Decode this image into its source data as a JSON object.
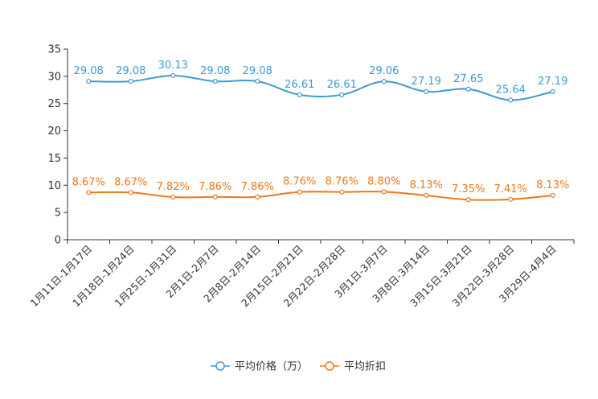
{
  "chart_data": {
    "type": "line",
    "categories": [
      "1月11日-1月17日",
      "1月18日-1月24日",
      "1月25日-1月31日",
      "2月1日-2月7日",
      "2月8日-2月14日",
      "2月15日-2月21日",
      "2月22日-2月28日",
      "3月1日-3月7日",
      "3月8日-3月14日",
      "3月15日-3月21日",
      "3月22日-3月28日",
      "3月29日-4月4日"
    ],
    "ylim": [
      0,
      35
    ],
    "yticks": [
      0,
      5,
      10,
      15,
      20,
      25,
      30,
      35
    ],
    "series": [
      {
        "name": "平均价格（万）",
        "color": "#3a9bd5",
        "values": [
          29.08,
          29.08,
          30.13,
          29.08,
          29.08,
          26.61,
          26.61,
          29.06,
          27.19,
          27.65,
          25.64,
          27.19
        ],
        "labels": [
          "29.08",
          "29.08",
          "30.13",
          "29.08",
          "29.08",
          "26.61",
          "26.61",
          "29.06",
          "27.19",
          "27.65",
          "25.64",
          "27.19"
        ]
      },
      {
        "name": "平均折扣",
        "color": "#f07818",
        "values": [
          8.67,
          8.67,
          7.82,
          7.86,
          7.86,
          8.76,
          8.76,
          8.8,
          8.13,
          7.35,
          7.41,
          8.13
        ],
        "labels": [
          "8.67%",
          "8.67%",
          "7.82%",
          "7.86%",
          "7.86%",
          "8.76%",
          "8.76%",
          "8.80%",
          "8.13%",
          "7.35%",
          "7.41%",
          "8.13%"
        ]
      }
    ],
    "legend_position": "bottom-center",
    "grid": false
  }
}
